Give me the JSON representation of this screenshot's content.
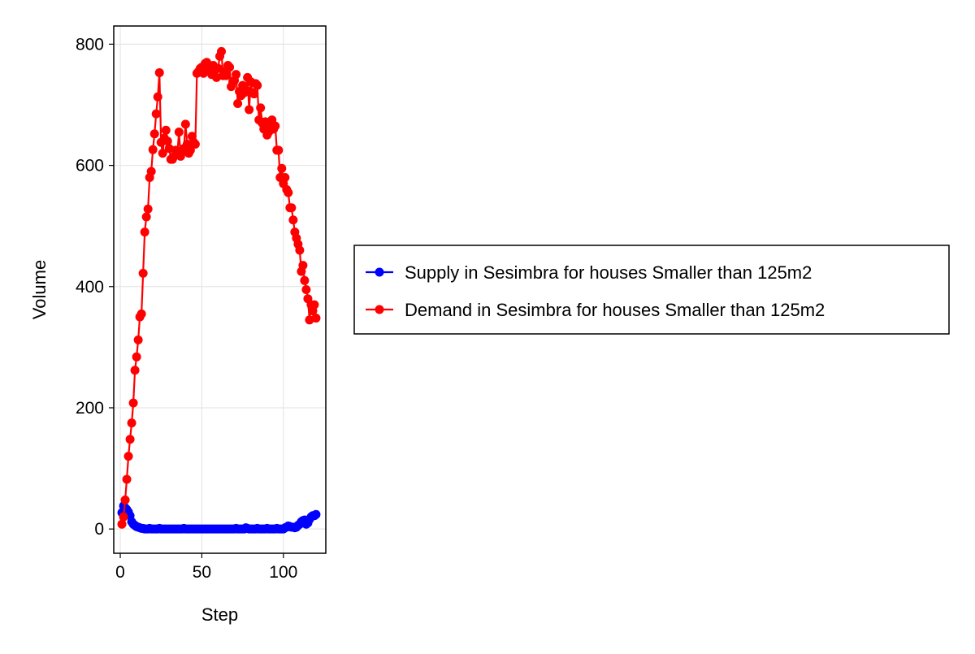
{
  "chart_data": {
    "type": "line",
    "title": "",
    "xlabel": "Step",
    "ylabel": "Volume",
    "xlim": [
      -4,
      126
    ],
    "ylim": [
      -40,
      830
    ],
    "x_ticks": [
      0,
      50,
      100
    ],
    "y_ticks": [
      0,
      200,
      400,
      600,
      800
    ],
    "grid": true,
    "legend_position": "right",
    "markers": true,
    "series": [
      {
        "name": "Supply in Sesimbra for houses Smaller than 125m2",
        "color": "#0000ff",
        "x": [
          1,
          2,
          3,
          4,
          5,
          6,
          7,
          8,
          9,
          10,
          11,
          12,
          13,
          14,
          15,
          16,
          17,
          18,
          19,
          20,
          21,
          22,
          23,
          24,
          25,
          26,
          27,
          28,
          29,
          30,
          31,
          32,
          33,
          34,
          35,
          36,
          37,
          38,
          39,
          40,
          41,
          42,
          43,
          44,
          45,
          46,
          47,
          48,
          49,
          50,
          51,
          52,
          53,
          54,
          55,
          56,
          57,
          58,
          59,
          60,
          61,
          62,
          63,
          64,
          65,
          66,
          67,
          68,
          69,
          70,
          71,
          72,
          73,
          74,
          75,
          76,
          77,
          78,
          79,
          80,
          81,
          82,
          83,
          84,
          85,
          86,
          87,
          88,
          89,
          90,
          91,
          92,
          93,
          94,
          95,
          96,
          97,
          98,
          99,
          100,
          101,
          102,
          103,
          104,
          105,
          106,
          107,
          108,
          109,
          110,
          111,
          112,
          113,
          114,
          115,
          116,
          117,
          118,
          119,
          120
        ],
        "values": [
          27,
          38,
          35,
          32,
          28,
          22,
          12,
          8,
          6,
          4,
          3,
          2,
          1,
          1,
          0,
          0,
          0,
          1,
          0,
          0,
          0,
          0,
          0,
          1,
          0,
          0,
          0,
          0,
          0,
          0,
          0,
          0,
          0,
          0,
          0,
          0,
          0,
          0,
          1,
          0,
          0,
          0,
          0,
          0,
          0,
          0,
          0,
          0,
          0,
          0,
          0,
          0,
          0,
          0,
          0,
          0,
          0,
          0,
          0,
          0,
          0,
          0,
          0,
          0,
          0,
          0,
          0,
          0,
          0,
          0,
          1,
          0,
          0,
          0,
          0,
          0,
          2,
          1,
          0,
          0,
          0,
          0,
          0,
          1,
          0,
          0,
          0,
          0,
          0,
          1,
          0,
          0,
          0,
          0,
          0,
          1,
          0,
          0,
          0,
          0,
          2,
          3,
          5,
          4,
          3,
          3,
          2,
          3,
          6,
          8,
          12,
          14,
          15,
          8,
          10,
          16,
          20,
          22,
          22,
          24
        ]
      },
      {
        "name": "Demand in Sesimbra for houses Smaller than 125m2",
        "color": "#ff0000",
        "x": [
          1,
          2,
          3,
          4,
          5,
          6,
          7,
          8,
          9,
          10,
          11,
          12,
          13,
          14,
          15,
          16,
          17,
          18,
          19,
          20,
          21,
          22,
          23,
          24,
          25,
          26,
          27,
          28,
          29,
          30,
          31,
          32,
          33,
          34,
          35,
          36,
          37,
          38,
          39,
          40,
          41,
          42,
          43,
          44,
          45,
          46,
          47,
          48,
          49,
          50,
          51,
          52,
          53,
          54,
          55,
          56,
          57,
          58,
          59,
          60,
          61,
          62,
          63,
          64,
          65,
          66,
          67,
          68,
          69,
          70,
          71,
          72,
          73,
          74,
          75,
          76,
          77,
          78,
          79,
          80,
          81,
          82,
          83,
          84,
          85,
          86,
          87,
          88,
          89,
          90,
          91,
          92,
          93,
          94,
          95,
          96,
          97,
          98,
          99,
          100,
          101,
          102,
          103,
          104,
          105,
          106,
          107,
          108,
          109,
          110,
          111,
          112,
          113,
          114,
          115,
          116,
          117,
          118,
          119,
          120
        ],
        "values": [
          8,
          20,
          48,
          82,
          120,
          148,
          175,
          208,
          262,
          284,
          312,
          350,
          355,
          422,
          490,
          515,
          528,
          580,
          590,
          626,
          652,
          685,
          713,
          753,
          638,
          620,
          645,
          658,
          640,
          628,
          610,
          610,
          615,
          625,
          620,
          655,
          615,
          625,
          628,
          668,
          635,
          620,
          625,
          648,
          638,
          635,
          752,
          755,
          760,
          762,
          752,
          768,
          770,
          758,
          755,
          750,
          765,
          760,
          745,
          760,
          780,
          788,
          748,
          755,
          748,
          765,
          762,
          730,
          738,
          740,
          750,
          702,
          722,
          715,
          732,
          720,
          725,
          745,
          692,
          738,
          720,
          718,
          735,
          732,
          675,
          695,
          670,
          660,
          672,
          650,
          655,
          668,
          675,
          660,
          665,
          625,
          625,
          580,
          595,
          570,
          580,
          560,
          555,
          530,
          530,
          510,
          490,
          480,
          470,
          460,
          425,
          435,
          410,
          395,
          380,
          345,
          370,
          360,
          370,
          348
        ]
      }
    ]
  }
}
